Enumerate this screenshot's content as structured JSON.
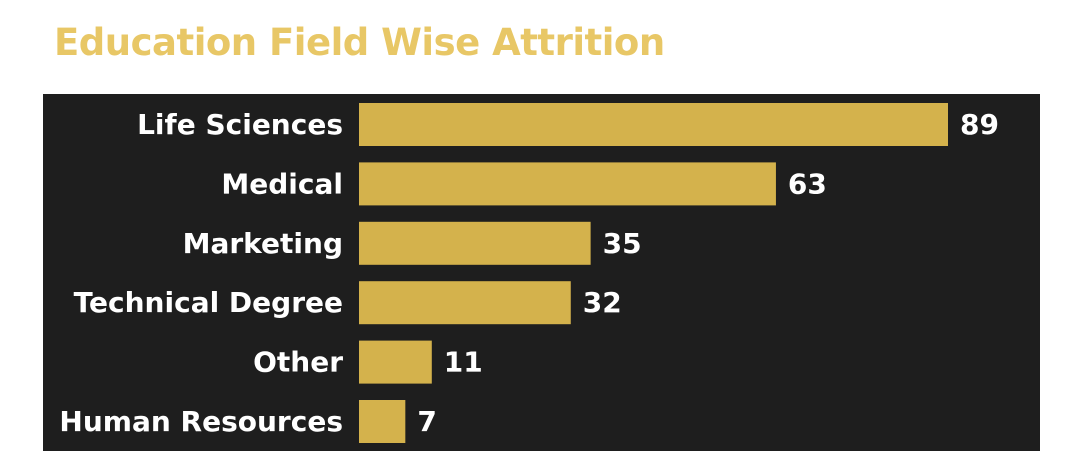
{
  "colors": {
    "title": "#E8C766",
    "bar": "#D4B24C",
    "panel": "#1E1E1E",
    "label": "#FFFFFF"
  },
  "chart_data": {
    "type": "bar",
    "orientation": "horizontal",
    "title": "Education Field Wise Attrition",
    "categories": [
      "Life Sciences",
      "Medical",
      "Marketing",
      "Technical Degree",
      "Other",
      "Human Resources"
    ],
    "values": [
      89,
      63,
      35,
      32,
      11,
      7
    ],
    "data_labels": [
      "89",
      "63",
      "35",
      "32",
      "11",
      "7"
    ],
    "xlim": [
      0,
      89
    ],
    "grid": false,
    "legend": "none",
    "xlabel": "",
    "ylabel": ""
  }
}
